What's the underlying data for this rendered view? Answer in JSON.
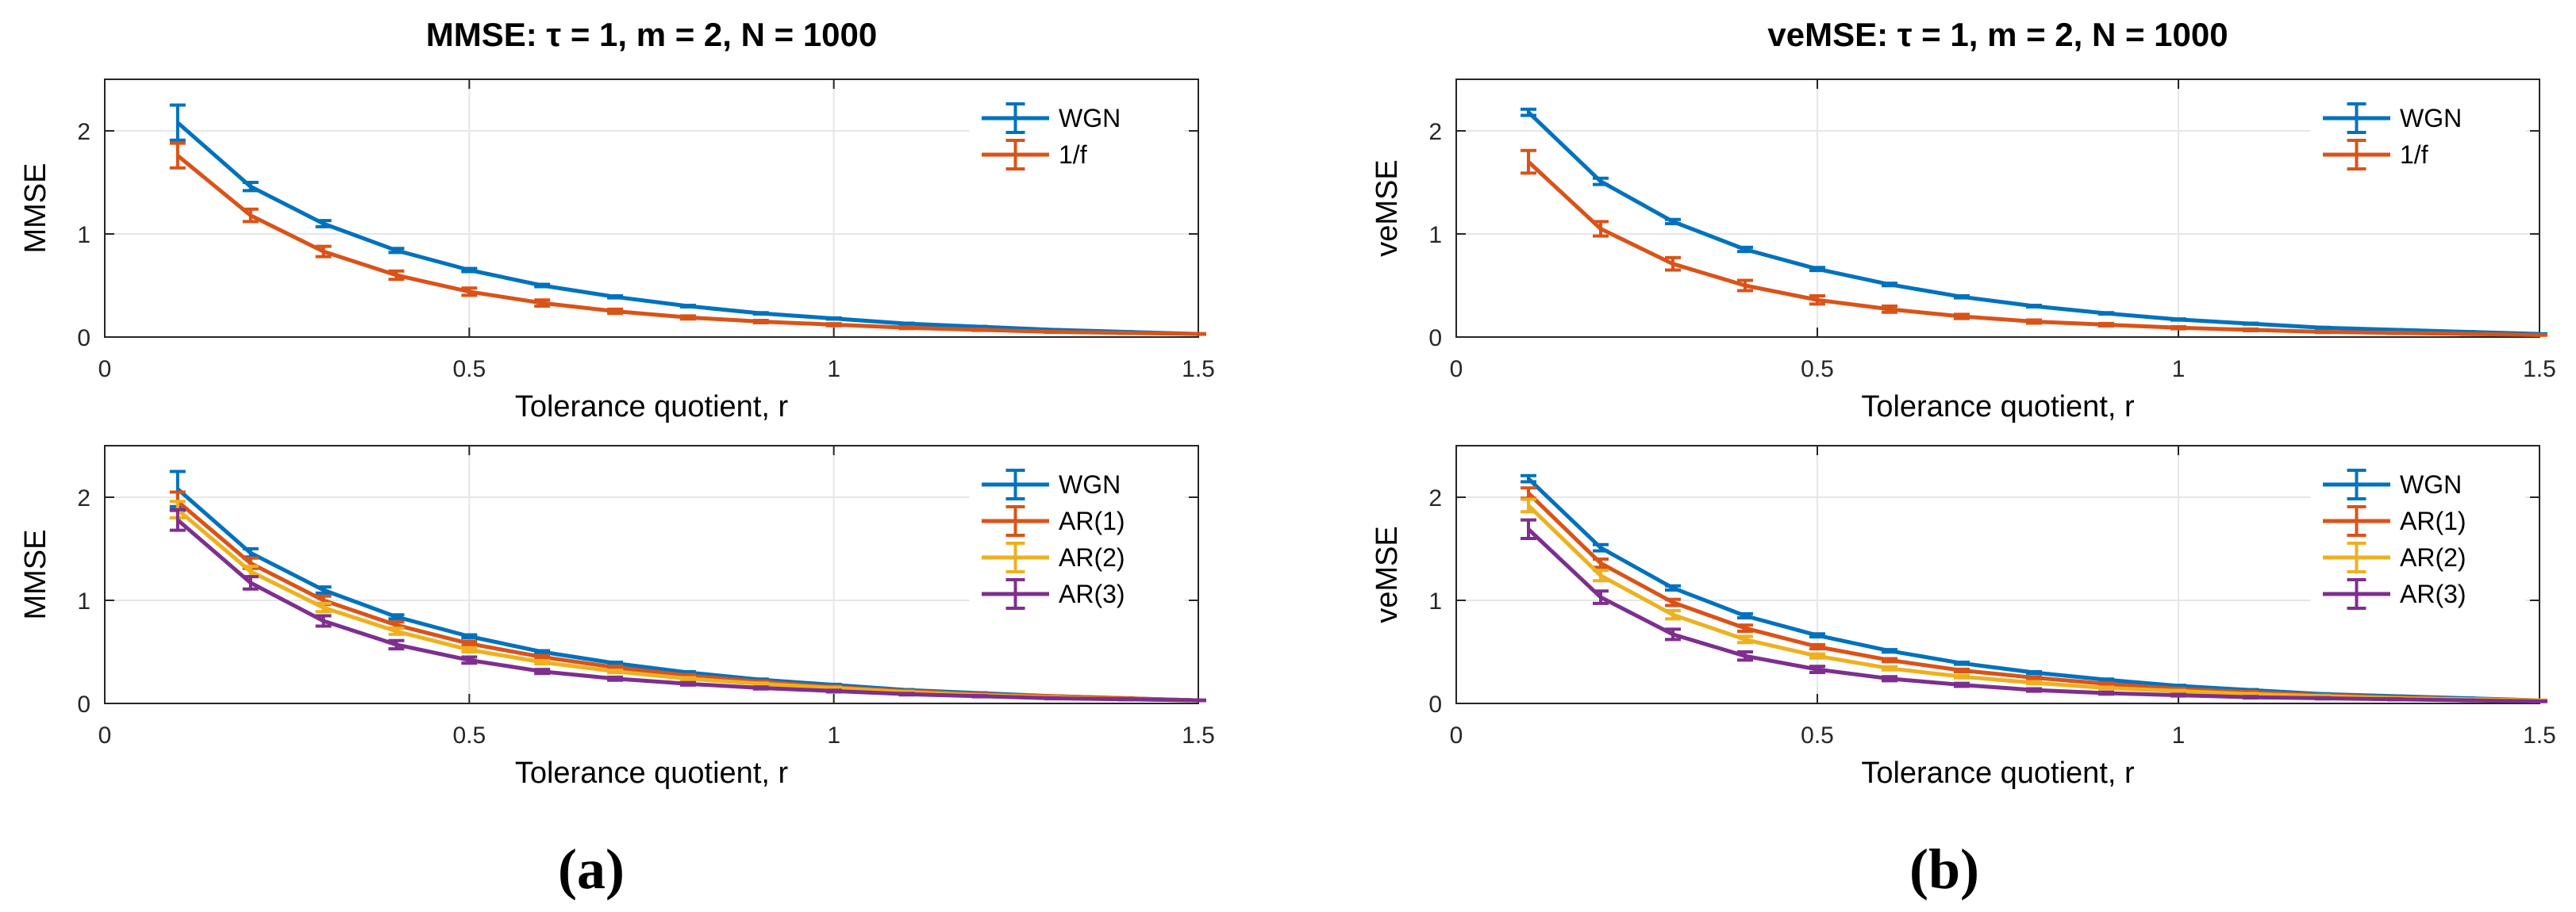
{
  "colors": {
    "blue": "#0072BD",
    "orange": "#D95319",
    "yellow": "#EDB120",
    "purple": "#7E2F8E",
    "grid": "#e6e6e6",
    "axis": "#262626"
  },
  "panel_labels": [
    "(a)",
    "(b)"
  ],
  "chart_data": [
    {
      "type": "line",
      "title": "MMSE: τ = 1, m = 2, N = 1000",
      "xlabel": "Tolerance quotient, r",
      "ylabel": "MMSE",
      "xlim": [
        0,
        1.5
      ],
      "ylim": [
        0,
        2.5
      ],
      "xticks": [
        0,
        0.5,
        1,
        1.5
      ],
      "xtick_labels": [
        "0",
        "0.5",
        "1",
        "1.5"
      ],
      "yticks": [
        0,
        1,
        2
      ],
      "ytick_labels": [
        "0",
        "1",
        "2"
      ],
      "grid": true,
      "legend_position": "top-right",
      "x": [
        0.1,
        0.2,
        0.3,
        0.4,
        0.5,
        0.6,
        0.7,
        0.8,
        0.9,
        1.0,
        1.1,
        1.2,
        1.3,
        1.4,
        1.5
      ],
      "series": [
        {
          "name": "WGN",
          "color": "#0072BD",
          "values": [
            2.08,
            1.46,
            1.1,
            0.84,
            0.65,
            0.5,
            0.39,
            0.3,
            0.23,
            0.18,
            0.13,
            0.1,
            0.07,
            0.05,
            0.03
          ],
          "errors": [
            0.17,
            0.04,
            0.03,
            0.02,
            0.015,
            0.012,
            0.01,
            0.008,
            0.007,
            0.006,
            0.005,
            0.004,
            0.003,
            0.003,
            0.002
          ]
        },
        {
          "name": "1/f",
          "color": "#D95319",
          "values": [
            1.76,
            1.18,
            0.83,
            0.6,
            0.44,
            0.33,
            0.25,
            0.19,
            0.15,
            0.12,
            0.09,
            0.07,
            0.05,
            0.04,
            0.03
          ],
          "errors": [
            0.12,
            0.06,
            0.05,
            0.04,
            0.035,
            0.03,
            0.02,
            0.015,
            0.012,
            0.01,
            0.008,
            0.006,
            0.005,
            0.004,
            0.003
          ]
        }
      ]
    },
    {
      "type": "line",
      "title": "veMSE: τ = 1, m = 2, N = 1000",
      "xlabel": "Tolerance quotient, r",
      "ylabel": "veMSE",
      "xlim": [
        0,
        1.5
      ],
      "ylim": [
        0,
        2.5
      ],
      "xticks": [
        0,
        0.5,
        1,
        1.5
      ],
      "xtick_labels": [
        "0",
        "0.5",
        "1",
        "1.5"
      ],
      "yticks": [
        0,
        1,
        2
      ],
      "ytick_labels": [
        "0",
        "1",
        "2"
      ],
      "grid": true,
      "legend_position": "top-right",
      "x": [
        0.1,
        0.2,
        0.3,
        0.4,
        0.5,
        0.6,
        0.7,
        0.8,
        0.9,
        1.0,
        1.1,
        1.2,
        1.3,
        1.4,
        1.5
      ],
      "series": [
        {
          "name": "WGN",
          "color": "#0072BD",
          "values": [
            2.18,
            1.51,
            1.12,
            0.85,
            0.66,
            0.51,
            0.39,
            0.3,
            0.23,
            0.17,
            0.13,
            0.09,
            0.07,
            0.05,
            0.03
          ],
          "errors": [
            0.03,
            0.03,
            0.02,
            0.02,
            0.015,
            0.012,
            0.01,
            0.008,
            0.007,
            0.006,
            0.005,
            0.004,
            0.003,
            0.003,
            0.002
          ]
        },
        {
          "name": "1/f",
          "color": "#D95319",
          "values": [
            1.7,
            1.05,
            0.71,
            0.5,
            0.36,
            0.27,
            0.2,
            0.15,
            0.12,
            0.09,
            0.07,
            0.05,
            0.04,
            0.03,
            0.02
          ],
          "errors": [
            0.11,
            0.07,
            0.06,
            0.05,
            0.04,
            0.03,
            0.02,
            0.015,
            0.012,
            0.01,
            0.008,
            0.006,
            0.005,
            0.004,
            0.003
          ]
        }
      ]
    },
    {
      "type": "line",
      "title": "",
      "xlabel": "Tolerance quotient, r",
      "ylabel": "MMSE",
      "xlim": [
        0,
        1.5
      ],
      "ylim": [
        0,
        2.5
      ],
      "xticks": [
        0,
        0.5,
        1,
        1.5
      ],
      "xtick_labels": [
        "0",
        "0.5",
        "1",
        "1.5"
      ],
      "yticks": [
        0,
        1,
        2
      ],
      "ytick_labels": [
        "0",
        "1",
        "2"
      ],
      "grid": true,
      "legend_position": "top-right",
      "x": [
        0.1,
        0.2,
        0.3,
        0.4,
        0.5,
        0.6,
        0.7,
        0.8,
        0.9,
        1.0,
        1.1,
        1.2,
        1.3,
        1.4,
        1.5
      ],
      "series": [
        {
          "name": "WGN",
          "color": "#0072BD",
          "values": [
            2.08,
            1.46,
            1.1,
            0.84,
            0.65,
            0.5,
            0.39,
            0.3,
            0.23,
            0.18,
            0.13,
            0.1,
            0.07,
            0.05,
            0.03
          ],
          "errors": [
            0.17,
            0.04,
            0.03,
            0.02,
            0.015,
            0.012,
            0.01,
            0.008,
            0.007,
            0.006,
            0.005,
            0.004,
            0.003,
            0.003,
            0.002
          ]
        },
        {
          "name": "AR(1)",
          "color": "#D95319",
          "values": [
            1.96,
            1.36,
            1.0,
            0.76,
            0.58,
            0.45,
            0.35,
            0.27,
            0.21,
            0.16,
            0.12,
            0.09,
            0.07,
            0.05,
            0.03
          ],
          "errors": [
            0.09,
            0.05,
            0.04,
            0.03,
            0.02,
            0.015,
            0.012,
            0.01,
            0.008,
            0.007,
            0.006,
            0.005,
            0.004,
            0.003,
            0.002
          ]
        },
        {
          "name": "AR(2)",
          "color": "#EDB120",
          "values": [
            1.88,
            1.28,
            0.93,
            0.7,
            0.52,
            0.4,
            0.31,
            0.24,
            0.19,
            0.15,
            0.11,
            0.08,
            0.06,
            0.04,
            0.03
          ],
          "errors": [
            0.08,
            0.05,
            0.04,
            0.03,
            0.02,
            0.015,
            0.012,
            0.01,
            0.008,
            0.007,
            0.006,
            0.005,
            0.004,
            0.003,
            0.002
          ]
        },
        {
          "name": "AR(3)",
          "color": "#7E2F8E",
          "values": [
            1.78,
            1.17,
            0.8,
            0.57,
            0.42,
            0.31,
            0.24,
            0.19,
            0.15,
            0.12,
            0.09,
            0.07,
            0.05,
            0.04,
            0.03
          ],
          "errors": [
            0.1,
            0.06,
            0.05,
            0.04,
            0.03,
            0.02,
            0.015,
            0.012,
            0.01,
            0.008,
            0.007,
            0.006,
            0.005,
            0.004,
            0.003
          ]
        }
      ]
    },
    {
      "type": "line",
      "title": "",
      "xlabel": "Tolerance quotient, r",
      "ylabel": "veMSE",
      "xlim": [
        0,
        1.5
      ],
      "ylim": [
        0,
        2.5
      ],
      "xticks": [
        0,
        0.5,
        1,
        1.5
      ],
      "xtick_labels": [
        "0",
        "0.5",
        "1",
        "1.5"
      ],
      "yticks": [
        0,
        1,
        2
      ],
      "ytick_labels": [
        "0",
        "1",
        "2"
      ],
      "grid": true,
      "legend_position": "top-right",
      "x": [
        0.1,
        0.2,
        0.3,
        0.4,
        0.5,
        0.6,
        0.7,
        0.8,
        0.9,
        1.0,
        1.1,
        1.2,
        1.3,
        1.4,
        1.5
      ],
      "series": [
        {
          "name": "WGN",
          "color": "#0072BD",
          "values": [
            2.18,
            1.51,
            1.12,
            0.85,
            0.66,
            0.51,
            0.39,
            0.3,
            0.23,
            0.17,
            0.13,
            0.09,
            0.07,
            0.05,
            0.03
          ],
          "errors": [
            0.03,
            0.03,
            0.02,
            0.02,
            0.015,
            0.012,
            0.01,
            0.008,
            0.007,
            0.006,
            0.005,
            0.004,
            0.003,
            0.003,
            0.002
          ]
        },
        {
          "name": "AR(1)",
          "color": "#D95319",
          "values": [
            2.04,
            1.36,
            0.98,
            0.73,
            0.55,
            0.42,
            0.32,
            0.25,
            0.19,
            0.14,
            0.11,
            0.08,
            0.06,
            0.04,
            0.03
          ],
          "errors": [
            0.05,
            0.04,
            0.03,
            0.03,
            0.02,
            0.015,
            0.012,
            0.01,
            0.008,
            0.007,
            0.006,
            0.005,
            0.004,
            0.003,
            0.002
          ]
        },
        {
          "name": "AR(2)",
          "color": "#EDB120",
          "values": [
            1.92,
            1.24,
            0.86,
            0.62,
            0.46,
            0.34,
            0.26,
            0.2,
            0.15,
            0.12,
            0.09,
            0.07,
            0.05,
            0.04,
            0.03
          ],
          "errors": [
            0.06,
            0.05,
            0.04,
            0.03,
            0.02,
            0.015,
            0.012,
            0.01,
            0.008,
            0.007,
            0.006,
            0.005,
            0.004,
            0.003,
            0.002
          ]
        },
        {
          "name": "AR(3)",
          "color": "#7E2F8E",
          "values": [
            1.69,
            1.03,
            0.67,
            0.46,
            0.33,
            0.24,
            0.18,
            0.13,
            0.1,
            0.08,
            0.06,
            0.05,
            0.04,
            0.03,
            0.02
          ],
          "errors": [
            0.09,
            0.06,
            0.05,
            0.04,
            0.03,
            0.02,
            0.015,
            0.012,
            0.01,
            0.008,
            0.007,
            0.006,
            0.005,
            0.004,
            0.003
          ]
        }
      ]
    }
  ]
}
